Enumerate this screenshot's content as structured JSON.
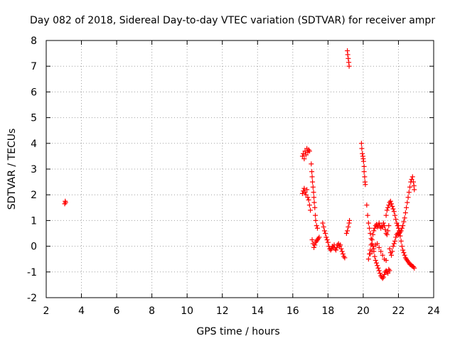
{
  "chart_data": {
    "type": "scatter",
    "title": "Day 082 of 2018, Sidereal Day-to-day VTEC variation (SDTVAR) for receiver ampr",
    "xlabel": "GPS time / hours",
    "ylabel": "SDTVAR / TECUs",
    "xlim": [
      2,
      24
    ],
    "ylim": [
      -2,
      8
    ],
    "xticks": [
      "2",
      "4",
      "6",
      "8",
      "10",
      "12",
      "14",
      "16",
      "18",
      "20",
      "22",
      "24"
    ],
    "yticks": [
      "-2",
      "-1",
      "0",
      "1",
      "2",
      "3",
      "4",
      "5",
      "6",
      "7",
      "8"
    ],
    "grid": true,
    "marker": "+",
    "color": "#ff0000",
    "series": [
      {
        "name": "SDTVAR",
        "points": [
          [
            3.05,
            1.65
          ],
          [
            3.08,
            1.75
          ],
          [
            3.1,
            1.7
          ],
          [
            16.55,
            3.5
          ],
          [
            16.6,
            3.6
          ],
          [
            16.65,
            3.4
          ],
          [
            16.7,
            3.7
          ],
          [
            16.75,
            3.55
          ],
          [
            16.8,
            3.8
          ],
          [
            16.85,
            3.65
          ],
          [
            16.9,
            3.75
          ],
          [
            16.95,
            3.7
          ],
          [
            16.55,
            2.05
          ],
          [
            16.6,
            2.15
          ],
          [
            16.65,
            2.25
          ],
          [
            16.7,
            2.1
          ],
          [
            16.75,
            2.0
          ],
          [
            16.8,
            2.2
          ],
          [
            16.85,
            1.9
          ],
          [
            16.9,
            1.8
          ],
          [
            16.95,
            1.6
          ],
          [
            17.0,
            1.4
          ],
          [
            17.05,
            3.2
          ],
          [
            17.08,
            2.9
          ],
          [
            17.1,
            2.7
          ],
          [
            17.12,
            2.5
          ],
          [
            17.15,
            2.3
          ],
          [
            17.18,
            2.1
          ],
          [
            17.2,
            1.9
          ],
          [
            17.22,
            1.7
          ],
          [
            17.25,
            1.5
          ],
          [
            17.28,
            1.2
          ],
          [
            17.3,
            1.0
          ],
          [
            17.35,
            0.8
          ],
          [
            17.4,
            0.7
          ],
          [
            17.1,
            0.25
          ],
          [
            17.15,
            0.1
          ],
          [
            17.2,
            -0.05
          ],
          [
            17.25,
            0.05
          ],
          [
            17.3,
            0.15
          ],
          [
            17.35,
            0.2
          ],
          [
            17.4,
            0.25
          ],
          [
            17.45,
            0.3
          ],
          [
            17.5,
            0.35
          ],
          [
            17.7,
            0.9
          ],
          [
            17.75,
            0.75
          ],
          [
            17.8,
            0.6
          ],
          [
            17.85,
            0.5
          ],
          [
            17.9,
            0.35
          ],
          [
            17.95,
            0.25
          ],
          [
            18.0,
            0.15
          ],
          [
            18.05,
            0.0
          ],
          [
            18.1,
            -0.1
          ],
          [
            18.15,
            -0.15
          ],
          [
            18.2,
            -0.1
          ],
          [
            18.25,
            0.0
          ],
          [
            18.3,
            -0.05
          ],
          [
            18.35,
            0.05
          ],
          [
            18.4,
            -0.1
          ],
          [
            18.45,
            -0.15
          ],
          [
            18.5,
            -0.05
          ],
          [
            18.55,
            0.05
          ],
          [
            18.6,
            0.1
          ],
          [
            18.65,
            0.0
          ],
          [
            18.7,
            0.05
          ],
          [
            18.75,
            -0.1
          ],
          [
            18.8,
            -0.2
          ],
          [
            18.85,
            -0.3
          ],
          [
            18.9,
            -0.4
          ],
          [
            18.95,
            -0.45
          ],
          [
            19.05,
            0.5
          ],
          [
            19.1,
            0.6
          ],
          [
            19.15,
            0.75
          ],
          [
            19.2,
            0.9
          ],
          [
            19.22,
            1.0
          ],
          [
            19.1,
            7.6
          ],
          [
            19.12,
            7.45
          ],
          [
            19.15,
            7.3
          ],
          [
            19.18,
            7.15
          ],
          [
            19.2,
            7.0
          ],
          [
            19.9,
            4.0
          ],
          [
            19.92,
            3.8
          ],
          [
            19.95,
            3.6
          ],
          [
            19.98,
            3.5
          ],
          [
            20.0,
            3.4
          ],
          [
            20.02,
            3.3
          ],
          [
            20.05,
            3.1
          ],
          [
            20.05,
            2.9
          ],
          [
            20.08,
            2.7
          ],
          [
            20.1,
            2.5
          ],
          [
            20.12,
            2.4
          ],
          [
            20.2,
            1.6
          ],
          [
            20.25,
            1.2
          ],
          [
            20.3,
            0.9
          ],
          [
            20.35,
            0.7
          ],
          [
            20.4,
            0.5
          ],
          [
            20.45,
            0.3
          ],
          [
            20.5,
            0.1
          ],
          [
            20.55,
            0.0
          ],
          [
            20.6,
            -0.2
          ],
          [
            20.65,
            -0.4
          ],
          [
            20.7,
            -0.55
          ],
          [
            20.75,
            -0.65
          ],
          [
            20.8,
            -0.75
          ],
          [
            20.85,
            -0.85
          ],
          [
            20.9,
            -0.95
          ],
          [
            20.95,
            -1.05
          ],
          [
            21.0,
            -1.15
          ],
          [
            21.05,
            -1.2
          ],
          [
            21.1,
            -1.25
          ],
          [
            21.15,
            -1.2
          ],
          [
            21.2,
            -1.1
          ],
          [
            21.25,
            -1.0
          ],
          [
            21.3,
            -0.95
          ],
          [
            21.35,
            -1.0
          ],
          [
            21.4,
            -1.05
          ],
          [
            21.45,
            -0.9
          ],
          [
            21.5,
            -0.95
          ],
          [
            20.3,
            -0.5
          ],
          [
            20.35,
            -0.3
          ],
          [
            20.4,
            -0.15
          ],
          [
            20.45,
            0.05
          ],
          [
            20.5,
            0.25
          ],
          [
            20.55,
            0.45
          ],
          [
            20.6,
            0.6
          ],
          [
            20.65,
            0.7
          ],
          [
            20.7,
            0.8
          ],
          [
            20.75,
            0.85
          ],
          [
            20.8,
            0.75
          ],
          [
            20.85,
            0.8
          ],
          [
            20.9,
            0.9
          ],
          [
            20.95,
            0.8
          ],
          [
            21.0,
            0.7
          ],
          [
            21.05,
            0.8
          ],
          [
            21.1,
            0.75
          ],
          [
            21.15,
            0.9
          ],
          [
            21.2,
            0.8
          ],
          [
            21.25,
            0.65
          ],
          [
            21.3,
            0.5
          ],
          [
            21.35,
            0.45
          ],
          [
            21.4,
            0.6
          ],
          [
            21.45,
            0.8
          ],
          [
            20.4,
            -0.3
          ],
          [
            20.5,
            -0.2
          ],
          [
            20.6,
            -0.1
          ],
          [
            20.7,
            0.05
          ],
          [
            20.8,
            0.1
          ],
          [
            20.9,
            -0.05
          ],
          [
            21.0,
            -0.2
          ],
          [
            21.1,
            -0.35
          ],
          [
            21.2,
            -0.5
          ],
          [
            21.3,
            -0.55
          ],
          [
            21.3,
            1.2
          ],
          [
            21.35,
            1.4
          ],
          [
            21.4,
            1.5
          ],
          [
            21.45,
            1.6
          ],
          [
            21.5,
            1.7
          ],
          [
            21.55,
            1.75
          ],
          [
            21.6,
            1.65
          ],
          [
            21.65,
            1.55
          ],
          [
            21.7,
            1.45
          ],
          [
            21.75,
            1.35
          ],
          [
            21.8,
            1.2
          ],
          [
            21.85,
            1.05
          ],
          [
            21.9,
            0.9
          ],
          [
            21.95,
            0.8
          ],
          [
            22.0,
            0.7
          ],
          [
            21.5,
            -0.1
          ],
          [
            21.55,
            -0.25
          ],
          [
            21.6,
            -0.35
          ],
          [
            21.65,
            -0.2
          ],
          [
            21.7,
            0.0
          ],
          [
            21.75,
            0.1
          ],
          [
            21.8,
            0.2
          ],
          [
            21.85,
            0.35
          ],
          [
            21.9,
            0.45
          ],
          [
            21.95,
            0.5
          ],
          [
            22.0,
            0.45
          ],
          [
            22.05,
            0.5
          ],
          [
            22.1,
            0.55
          ],
          [
            22.15,
            0.6
          ],
          [
            22.2,
            0.7
          ],
          [
            22.25,
            0.8
          ],
          [
            22.3,
            0.95
          ],
          [
            22.35,
            1.1
          ],
          [
            22.4,
            1.3
          ],
          [
            22.45,
            1.5
          ],
          [
            22.5,
            1.7
          ],
          [
            22.55,
            1.9
          ],
          [
            22.6,
            2.1
          ],
          [
            22.65,
            2.3
          ],
          [
            22.7,
            2.5
          ],
          [
            22.75,
            2.6
          ],
          [
            22.8,
            2.7
          ],
          [
            22.85,
            2.5
          ],
          [
            22.88,
            2.35
          ],
          [
            22.9,
            2.2
          ],
          [
            22.0,
            0.8
          ],
          [
            22.05,
            0.6
          ],
          [
            22.1,
            0.4
          ],
          [
            22.15,
            0.2
          ],
          [
            22.2,
            0.0
          ],
          [
            22.25,
            -0.15
          ],
          [
            22.3,
            -0.25
          ],
          [
            22.35,
            -0.35
          ],
          [
            22.4,
            -0.45
          ],
          [
            22.45,
            -0.5
          ],
          [
            22.5,
            -0.55
          ],
          [
            22.55,
            -0.6
          ],
          [
            22.6,
            -0.65
          ],
          [
            22.65,
            -0.7
          ],
          [
            22.7,
            -0.72
          ],
          [
            22.75,
            -0.75
          ],
          [
            22.8,
            -0.78
          ],
          [
            22.85,
            -0.8
          ],
          [
            22.9,
            -0.85
          ]
        ]
      }
    ]
  }
}
